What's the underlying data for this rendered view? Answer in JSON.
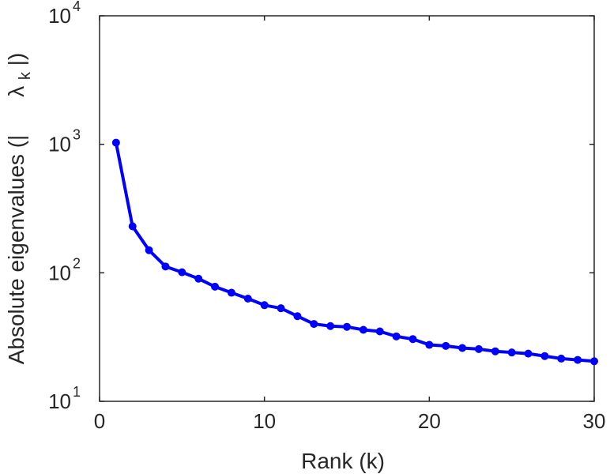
{
  "chart_data": {
    "type": "line",
    "xlabel": "Rank (k)",
    "ylabel": "Absolute eigenvalues (|",
    "ylabel_symbol": "λ",
    "ylabel_subscript": "k",
    "ylabel_suffix": "|)",
    "xlim": [
      0,
      30
    ],
    "ylim": [
      10,
      10000
    ],
    "yscale": "log",
    "grid": false,
    "x_ticks": [
      0,
      10,
      20,
      30
    ],
    "x_tick_labels": [
      "0",
      "10",
      "20",
      "30"
    ],
    "y_ticks": [
      10,
      100,
      1000,
      10000
    ],
    "y_tick_base": "10",
    "y_tick_exponents": [
      "1",
      "2",
      "3",
      "4"
    ],
    "series": [
      {
        "color": "#0000ff",
        "marker": "circle",
        "x": [
          1,
          2,
          3,
          4,
          5,
          6,
          7,
          8,
          9,
          10,
          11,
          12,
          13,
          14,
          15,
          16,
          17,
          18,
          19,
          20,
          21,
          22,
          23,
          24,
          25,
          26,
          27,
          28,
          29,
          30
        ],
        "values": [
          1030,
          230,
          150,
          112,
          101,
          90,
          78,
          70,
          63,
          56,
          53,
          46,
          40,
          38.5,
          38,
          36,
          35,
          32,
          30.5,
          27.5,
          27,
          26,
          25.5,
          24.5,
          24,
          23.5,
          22.5,
          21.5,
          21,
          20.5
        ]
      }
    ]
  }
}
